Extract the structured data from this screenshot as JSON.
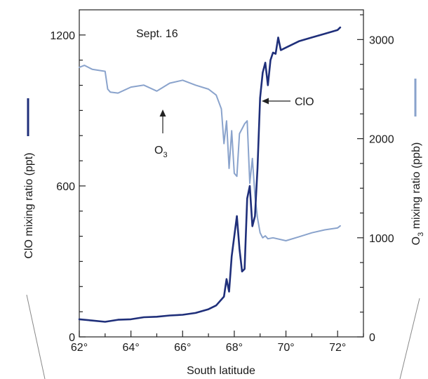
{
  "chart_data": {
    "type": "line",
    "annotation": "Sept. 16",
    "xlabel": "South latitude",
    "ylabel_left": "ClO mixing ratio (ppt)",
    "ylabel_right_prefix": "O",
    "ylabel_right_sub": "3",
    "ylabel_right_suffix": " mixing ratio (ppb)",
    "xlim": [
      62,
      73
    ],
    "ylim_left": [
      0,
      1300
    ],
    "ylim_right": [
      0,
      3300
    ],
    "xticks": [
      62,
      64,
      66,
      68,
      70,
      72
    ],
    "xtick_labels": [
      "62°",
      "64°",
      "66°",
      "68°",
      "70°",
      "72°"
    ],
    "yticks_left": [
      0,
      600,
      1200
    ],
    "yticks_left_labels": [
      "0",
      "600",
      "1200"
    ],
    "yticks_right": [
      0,
      1000,
      2000,
      3000
    ],
    "yticks_right_labels": [
      "0",
      "1000",
      "2000",
      "3000"
    ],
    "series": [
      {
        "name": "ClO",
        "axis": "left",
        "color": "#1f2f7a",
        "x": [
          62.0,
          62.5,
          63.0,
          63.5,
          64.0,
          64.5,
          65.0,
          65.5,
          66.0,
          66.5,
          67.0,
          67.3,
          67.6,
          67.7,
          67.8,
          67.9,
          68.0,
          68.1,
          68.2,
          68.3,
          68.4,
          68.5,
          68.6,
          68.7,
          68.8,
          68.9,
          69.0,
          69.1,
          69.2,
          69.3,
          69.4,
          69.5,
          69.6,
          69.7,
          69.8,
          70.0,
          70.5,
          71.0,
          71.5,
          72.0,
          72.1
        ],
        "values": [
          70,
          65,
          60,
          68,
          70,
          78,
          80,
          85,
          88,
          95,
          110,
          125,
          160,
          230,
          180,
          320,
          400,
          480,
          350,
          260,
          270,
          550,
          600,
          440,
          480,
          670,
          950,
          1050,
          1090,
          1000,
          1100,
          1130,
          1125,
          1190,
          1140,
          1150,
          1175,
          1190,
          1205,
          1220,
          1230
        ]
      },
      {
        "name": "O3",
        "axis": "right",
        "color": "#8aa3cc",
        "x": [
          62.0,
          62.2,
          62.5,
          63.0,
          63.1,
          63.2,
          63.5,
          64.0,
          64.5,
          65.0,
          65.5,
          66.0,
          66.5,
          67.0,
          67.3,
          67.5,
          67.6,
          67.7,
          67.8,
          67.9,
          68.0,
          68.1,
          68.2,
          68.3,
          68.4,
          68.5,
          68.6,
          68.7,
          68.8,
          68.9,
          69.0,
          69.1,
          69.2,
          69.3,
          69.5,
          70.0,
          70.5,
          71.0,
          71.5,
          72.0,
          72.1
        ],
        "values": [
          2720,
          2740,
          2700,
          2680,
          2500,
          2470,
          2460,
          2520,
          2540,
          2480,
          2560,
          2590,
          2540,
          2500,
          2440,
          2300,
          1950,
          2180,
          1700,
          2080,
          1650,
          1620,
          2050,
          2100,
          2150,
          2180,
          1550,
          1800,
          1420,
          1200,
          1050,
          1000,
          1020,
          990,
          1000,
          970,
          1010,
          1050,
          1080,
          1100,
          1120
        ]
      }
    ],
    "annotations": [
      {
        "label": "ClO",
        "series": "ClO"
      },
      {
        "label_prefix": "O",
        "label_sub": "3",
        "series": "O3"
      }
    ]
  }
}
